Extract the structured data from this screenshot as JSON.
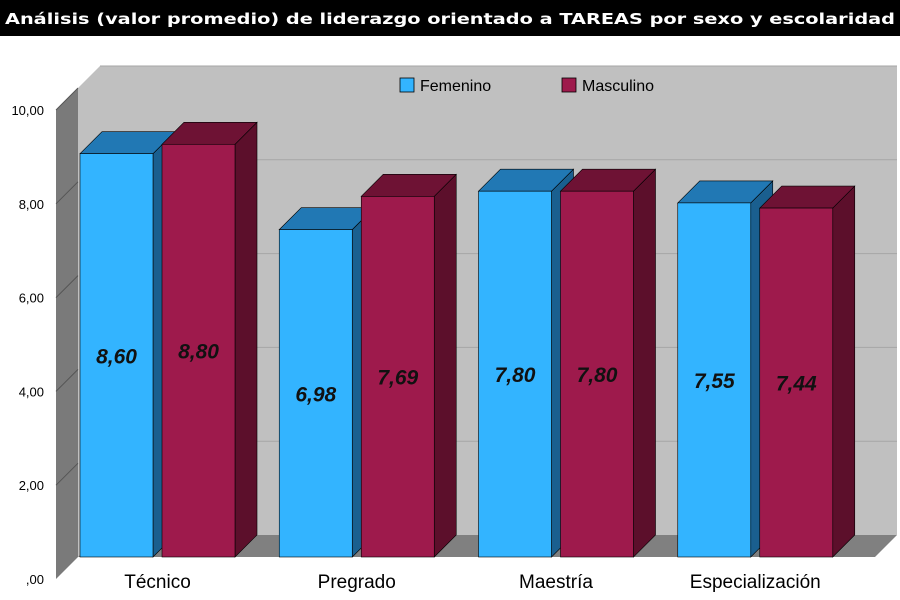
{
  "chart_data": {
    "type": "bar",
    "title": "Análisis (valor promedio) de liderazgo orientado a TAREAS por sexo y escolaridad",
    "categories": [
      "Técnico",
      "Pregrado",
      "Maestría",
      "Especialización"
    ],
    "series": [
      {
        "name": "Femenino",
        "values": [
          8.6,
          6.98,
          7.8,
          7.55
        ],
        "labels": [
          "8,60",
          "6,98",
          "7,80",
          "7,55"
        ]
      },
      {
        "name": "Masculino",
        "values": [
          8.8,
          7.69,
          7.8,
          7.44
        ],
        "labels": [
          "8,80",
          "7,69",
          "7,80",
          "7,44"
        ]
      }
    ],
    "ylim": [
      0,
      10
    ],
    "yticks": [
      0,
      2,
      4,
      6,
      8,
      10
    ],
    "ytick_labels": [
      ",00",
      "2,00",
      "4,00",
      "6,00",
      "8,00",
      "10,00"
    ],
    "xlabel": "",
    "ylabel": "",
    "grid": true,
    "legend_position": "top-center",
    "style": "3d"
  },
  "colors": {
    "femenino_front": "#33b4ff",
    "femenino_top": "#2178b4",
    "femenino_side": "#1a5f8f",
    "masculino_front": "#9e1a4c",
    "masculino_top": "#6e1234",
    "masculino_side": "#5c0f2b",
    "wall": "#c0c0c0",
    "side_wall": "#7a7a7a",
    "floor": "#808080",
    "title_bg": "#000000"
  }
}
